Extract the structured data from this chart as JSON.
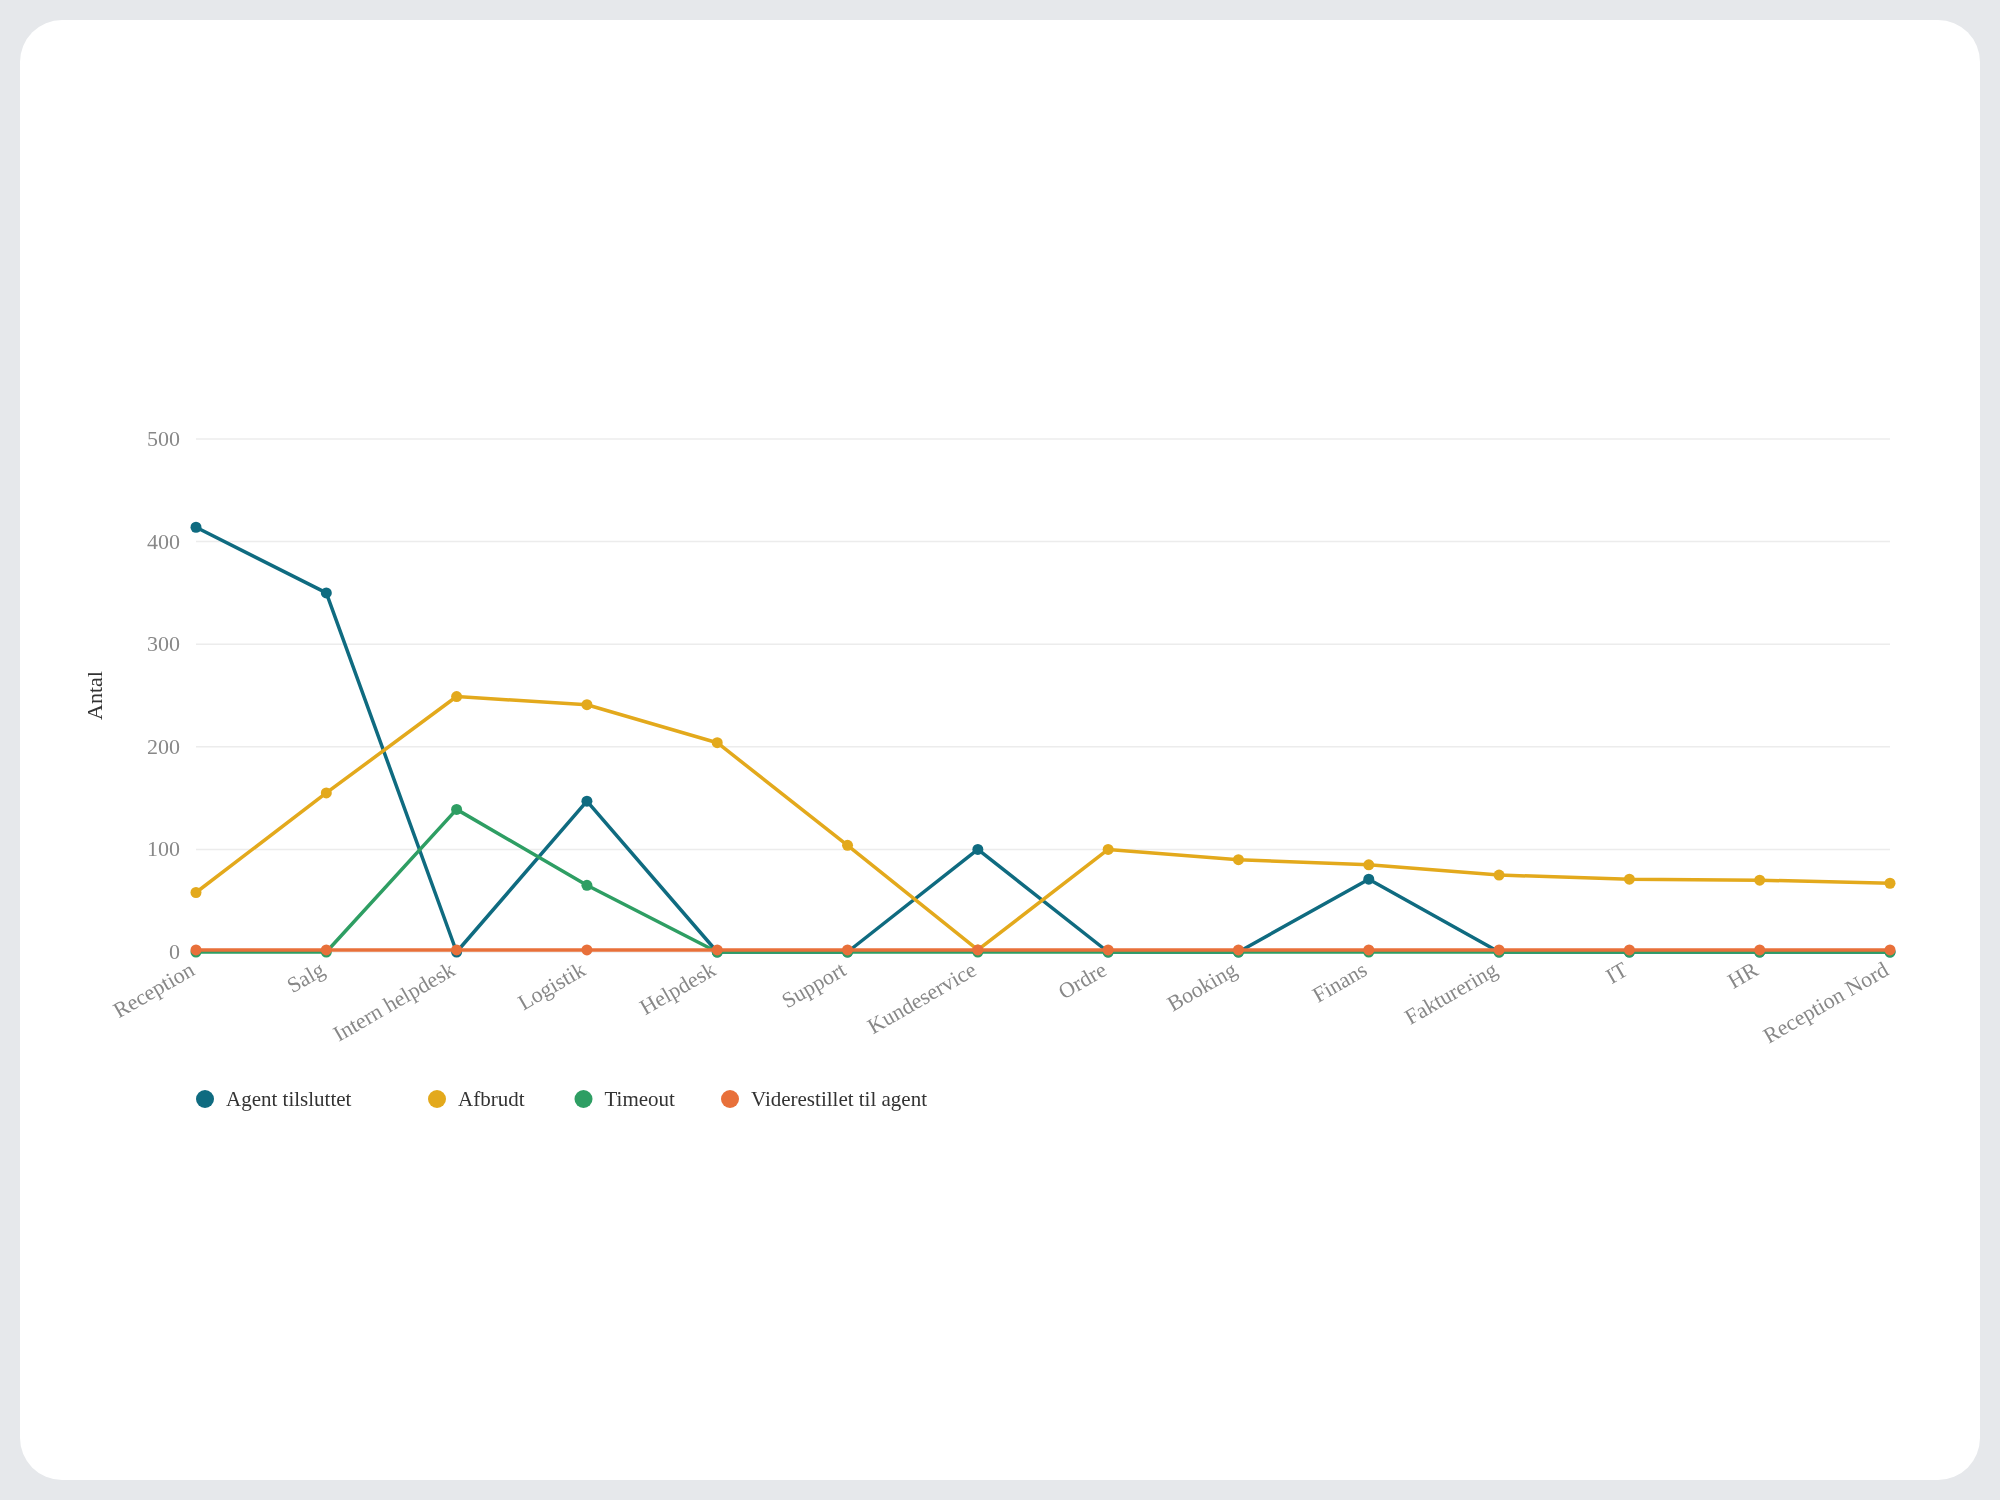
{
  "chart_data": {
    "type": "line",
    "ylabel": "Antal",
    "categories": [
      "Reception",
      "Salg",
      "Intern helpdesk",
      "Logistik",
      "Helpdesk",
      "Support",
      "Kundeservice",
      "Ordre",
      "Booking",
      "Finans",
      "Fakturering",
      "IT",
      "HR",
      "Reception Nord"
    ],
    "series": [
      {
        "name": "Agent tilsluttet",
        "color": "#0f6b80",
        "values": [
          414,
          350,
          0,
          147,
          0,
          0,
          100,
          0,
          0,
          71,
          0,
          0,
          0,
          0
        ]
      },
      {
        "name": "Afbrudt",
        "color": "#e3a91c",
        "values": [
          58,
          155,
          249,
          241,
          204,
          104,
          2,
          100,
          90,
          85,
          75,
          71,
          70,
          67
        ]
      },
      {
        "name": "Timeout",
        "color": "#2e9e63",
        "values": [
          0,
          0,
          139,
          65,
          0,
          0,
          0,
          0,
          0,
          0,
          0,
          0,
          0,
          0
        ]
      },
      {
        "name": "Viderestillet til agent",
        "color": "#e8703a",
        "values": [
          2,
          2,
          2,
          2,
          2,
          2,
          2,
          2,
          2,
          2,
          2,
          2,
          2,
          2
        ]
      }
    ],
    "ylim": [
      0,
      500
    ],
    "yticks": [
      0,
      100,
      200,
      300,
      400,
      500
    ],
    "grid": "y",
    "legend": "bottom left",
    "marker": "circle",
    "line_style": "solid"
  }
}
